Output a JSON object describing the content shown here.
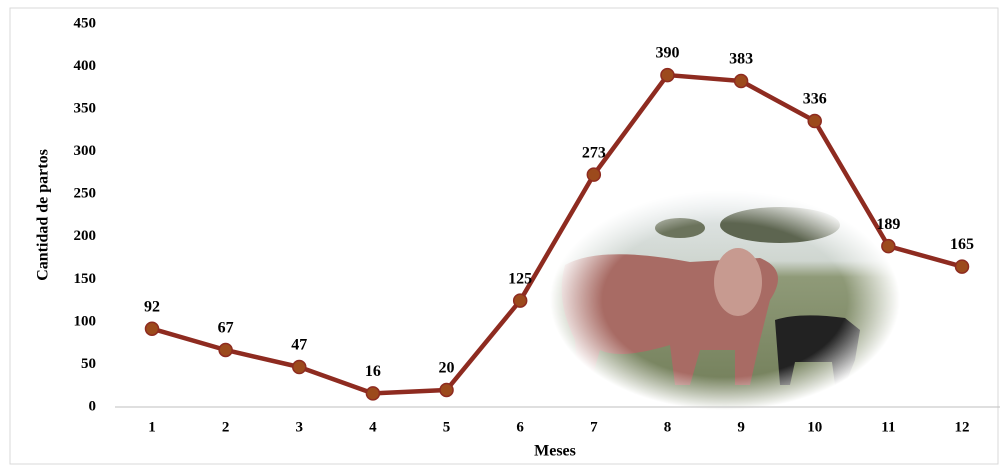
{
  "chart_data": {
    "type": "line",
    "x_label": "Meses",
    "y_label": "Cantidad de partos",
    "categories": [
      "1",
      "2",
      "3",
      "4",
      "5",
      "6",
      "7",
      "8",
      "9",
      "10",
      "11",
      "12"
    ],
    "values": [
      92,
      67,
      47,
      16,
      20,
      125,
      273,
      390,
      383,
      336,
      189,
      165
    ],
    "color": "#8e2b20",
    "marker_color": "#9c4a1c",
    "ylim": [
      0,
      450
    ],
    "yticks": [
      0,
      50,
      100,
      150,
      200,
      250,
      300,
      350,
      400,
      450
    ],
    "grid": false
  }
}
